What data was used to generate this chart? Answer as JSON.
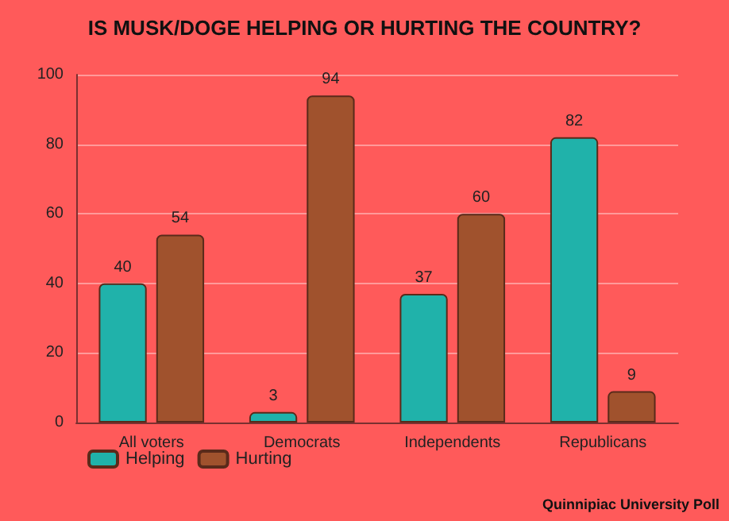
{
  "chart_data": {
    "type": "bar",
    "title": "IS MUSK/DOGE HELPING OR HURTING THE COUNTRY?",
    "categories": [
      "All voters",
      "Democrats",
      "Independents",
      "Republicans"
    ],
    "series": [
      {
        "name": "Helping",
        "color": "#20b2aa",
        "values": [
          40,
          3,
          37,
          82
        ]
      },
      {
        "name": "Hurting",
        "color": "#a0522d",
        "values": [
          54,
          94,
          60,
          9
        ]
      }
    ],
    "ylim": [
      0,
      100
    ],
    "yticks": [
      0,
      20,
      40,
      60,
      80,
      100
    ],
    "grid": "y",
    "legend": "bottom left",
    "data_labels": true,
    "annotations": [
      "Quinnipiac University Poll"
    ]
  }
}
